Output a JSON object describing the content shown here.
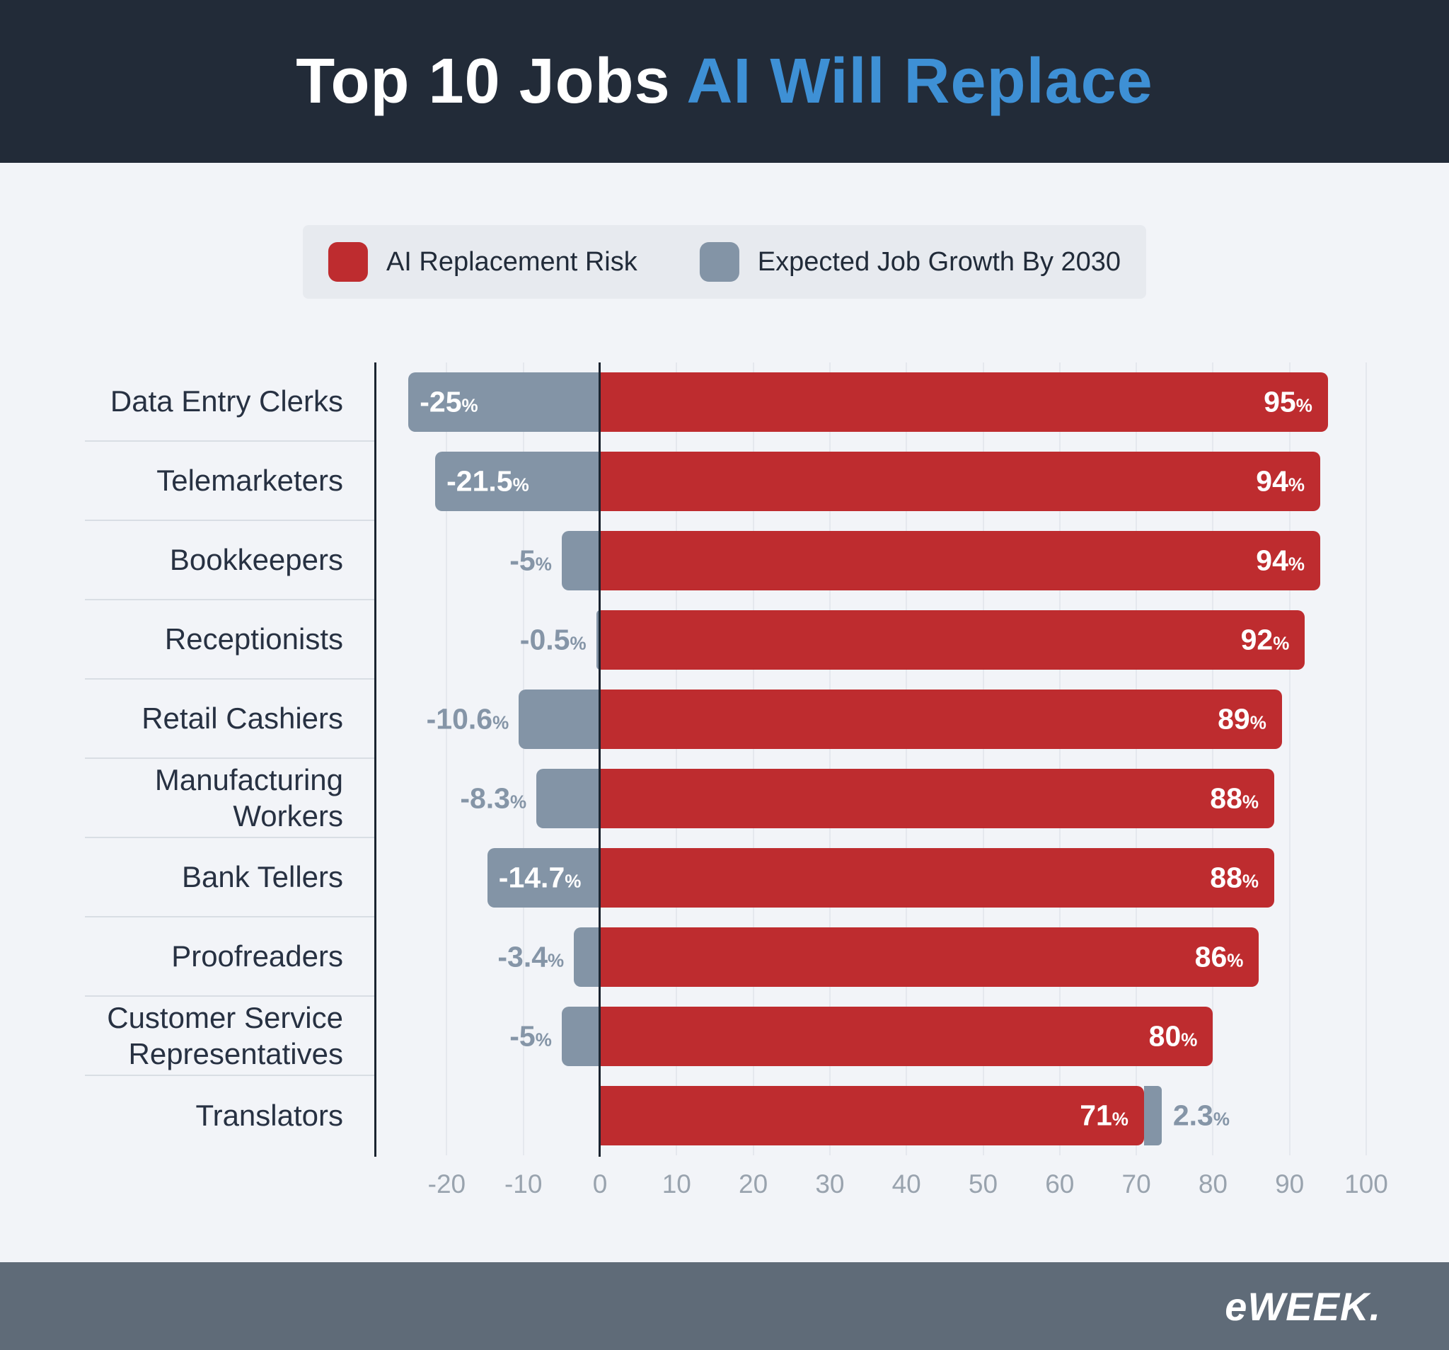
{
  "header": {
    "title_white": "Top 10 Jobs",
    "title_blue": "AI Will Replace"
  },
  "legend": {
    "items": [
      {
        "label": "AI Replacement Risk",
        "swatch": "red-rounded-square"
      },
      {
        "label": "Expected Job Growth By 2030",
        "swatch": "gray-rounded-square"
      }
    ]
  },
  "footer": {
    "logo": "eWEEK."
  },
  "colors": {
    "headerBg": "#222B38",
    "titleBlue": "#3E90D5",
    "pageBg": "#F2F4F8",
    "legendBg": "#E7EAEF",
    "red": "#BE2C2F",
    "grayBar": "#8394A6",
    "grayText": "#8595A7",
    "labelColor": "#273142",
    "legendText": "#212B39",
    "tick": "#99A3AE",
    "rowSep": "#D9DEE4",
    "gridline": "#E5E8EE",
    "darkLine": "#1B2430",
    "footerBg": "#5F6B78"
  },
  "chart_data": {
    "type": "bar",
    "orientation": "horizontal-diverging",
    "title": "Top 10 Jobs AI Will Replace",
    "xlabel": "",
    "ylabel": "",
    "x_unit": "%",
    "unit_suffix": "%",
    "xlim": [
      -30,
      105
    ],
    "xticks": [
      -20,
      -10,
      0,
      10,
      20,
      30,
      40,
      50,
      60,
      70,
      80,
      90,
      100
    ],
    "grid": true,
    "legend_position": "top",
    "categories": [
      "Data Entry Clerks",
      "Telemarketers",
      "Bookkeepers",
      "Receptionists",
      "Retail Cashiers",
      "Manufacturing Workers",
      "Bank Tellers",
      "Proofreaders",
      "Customer Service Representatives",
      "Translators"
    ],
    "series": [
      {
        "name": "AI Replacement Risk",
        "values": [
          95,
          94,
          94,
          92,
          89,
          88,
          88,
          86,
          80,
          71
        ]
      },
      {
        "name": "Expected Job Growth By 2030",
        "values": [
          -25,
          -21.5,
          -5,
          -0.5,
          -10.6,
          -8.3,
          -14.7,
          -3.4,
          -5,
          2.3
        ]
      }
    ],
    "rows": [
      {
        "category": "Data Entry Clerks",
        "risk": 95,
        "risk_label": "95",
        "growth": -25,
        "growth_label": "-25",
        "growth_label_inside": true
      },
      {
        "category": "Telemarketers",
        "risk": 94,
        "risk_label": "94",
        "growth": -21.5,
        "growth_label": "-21.5",
        "growth_label_inside": true
      },
      {
        "category": "Bookkeepers",
        "risk": 94,
        "risk_label": "94",
        "growth": -5,
        "growth_label": "-5",
        "growth_label_inside": false
      },
      {
        "category": "Receptionists",
        "risk": 92,
        "risk_label": "92",
        "growth": -0.5,
        "growth_label": "-0.5",
        "growth_label_inside": false
      },
      {
        "category": "Retail Cashiers",
        "risk": 89,
        "risk_label": "89",
        "growth": -10.6,
        "growth_label": "-10.6",
        "growth_label_inside": false
      },
      {
        "category": "Manufacturing Workers",
        "risk": 88,
        "risk_label": "88",
        "growth": -8.3,
        "growth_label": "-8.3",
        "growth_label_inside": false
      },
      {
        "category": "Bank Tellers",
        "risk": 88,
        "risk_label": "88",
        "growth": -14.7,
        "growth_label": "-14.7",
        "growth_label_inside": true
      },
      {
        "category": "Proofreaders",
        "risk": 86,
        "risk_label": "86",
        "growth": -3.4,
        "growth_label": "-3.4",
        "growth_label_inside": false
      },
      {
        "category": "Customer Service Representatives",
        "risk": 80,
        "risk_label": "80",
        "growth": -5,
        "growth_label": "-5",
        "growth_label_inside": false
      },
      {
        "category": "Translators",
        "risk": 71,
        "risk_label": "71",
        "growth": 2.3,
        "growth_label": "2.3",
        "growth_label_inside": false
      }
    ]
  }
}
